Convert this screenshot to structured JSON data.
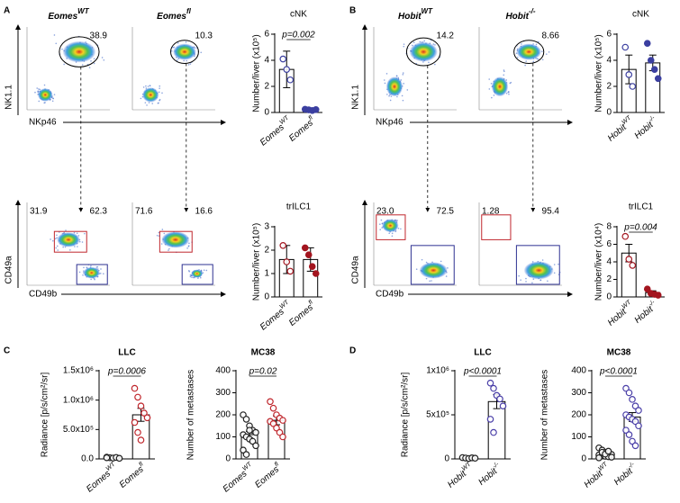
{
  "panel_labels": [
    "A",
    "B",
    "C",
    "D"
  ],
  "flow": [
    {
      "samples": [
        {
          "name": "Eomes",
          "sup": "WT",
          "top_gate": "38.9",
          "left_gate": "31.9",
          "right_gate": "62.3"
        },
        {
          "name": "Eomes",
          "sup": "fl",
          "top_gate": "10.3",
          "left_gate": "71.6",
          "right_gate": "16.6"
        }
      ],
      "top_y_label": "NK1.1",
      "top_x_label": "NKp46",
      "bottom_y_label": "CD49a",
      "bottom_x_label": "CD49b"
    },
    {
      "samples": [
        {
          "name": "Hobit",
          "sup": "WT",
          "top_gate": "14.2",
          "left_gate": "23.0",
          "right_gate": "72.5"
        },
        {
          "name": "Hobit",
          "sup": "-/-",
          "top_gate": "8.66",
          "left_gate": "1.28",
          "right_gate": "95.4"
        }
      ],
      "top_y_label": "NK1.1",
      "top_x_label": "NKp46",
      "bottom_y_label": "CD49a",
      "bottom_x_label": "CD49b"
    }
  ],
  "charts": [
    {
      "type": "bar",
      "title": "cNK",
      "title_color": "#2e3192",
      "y_label": "Number/liver (x10⁵)",
      "ylim": [
        0,
        6
      ],
      "yticks": [
        0,
        2,
        4,
        6
      ],
      "p_label": "p=0.002",
      "series": [
        {
          "label": "Eomes",
          "sup": "WT",
          "mean": 3.3,
          "error": 1.4,
          "points": [
            4.1,
            3.3,
            2.5
          ],
          "color": "#3b3fa0",
          "filled": false
        },
        {
          "label": "Eomes",
          "sup": "fl",
          "mean": 0.2,
          "error": 0.05,
          "points": [
            0.25,
            0.2,
            0.15,
            0.22
          ],
          "color": "#3b3fa0",
          "filled": true
        }
      ]
    },
    {
      "type": "bar",
      "title": "trILC1",
      "title_color": "#b2182b",
      "y_label": "Number/liver (x10⁵)",
      "ylim": [
        0,
        3
      ],
      "yticks": [
        0,
        1,
        2,
        3
      ],
      "series": [
        {
          "label": "Eomes",
          "sup": "WT",
          "mean": 1.6,
          "error": 0.6,
          "points": [
            2.2,
            1.5,
            1.1
          ],
          "color": "#a3151f",
          "filled": false
        },
        {
          "label": "Eomes",
          "sup": "fl",
          "mean": 1.6,
          "error": 0.5,
          "points": [
            2.1,
            1.8,
            1.3,
            1.0
          ],
          "color": "#a3151f",
          "filled": true
        }
      ]
    },
    {
      "type": "bar",
      "title": "cNK",
      "title_color": "#2e3192",
      "y_label": "Number/liver (x10⁵)",
      "ylim": [
        0,
        6
      ],
      "yticks": [
        0,
        2,
        4,
        6
      ],
      "series": [
        {
          "label": "Hobit",
          "sup": "WT",
          "mean": 3.3,
          "error": 1.1,
          "points": [
            5.0,
            2.9,
            2.0
          ],
          "color": "#3b3fa0",
          "filled": false
        },
        {
          "label": "Hobit",
          "sup": "-/-",
          "mean": 3.8,
          "error": 0.6,
          "points": [
            5.3,
            4.0,
            3.3,
            2.6
          ],
          "color": "#3b3fa0",
          "filled": true
        }
      ]
    },
    {
      "type": "bar",
      "title": "trILC1",
      "title_color": "#b2182b",
      "y_label": "Number/liver (x10⁴)",
      "ylim": [
        0,
        8
      ],
      "yticks": [
        0,
        2,
        4,
        6,
        8
      ],
      "p_label": "p=0.004",
      "series": [
        {
          "label": "Hobit",
          "sup": "WT",
          "mean": 5.0,
          "error": 1.0,
          "points": [
            6.9,
            4.3,
            3.6
          ],
          "color": "#a3151f",
          "filled": false
        },
        {
          "label": "Hobit",
          "sup": "-/-",
          "mean": 0.5,
          "error": 0.2,
          "points": [
            0.9,
            0.4,
            0.3,
            0.2
          ],
          "color": "#a3151f",
          "filled": true
        }
      ]
    },
    {
      "type": "bar",
      "title": "LLC",
      "title_color": "#000000",
      "y_label": "Radiance [p/s/cm²/sr]",
      "ylim": [
        0,
        1500000
      ],
      "yticks": [
        {
          "value": 0,
          "label": "0.0"
        },
        {
          "value": 500000,
          "label": "5.0x10⁵"
        },
        {
          "value": 1000000,
          "label": "1.0x10⁶"
        },
        {
          "value": 1500000,
          "label": "1.5x10⁶"
        }
      ],
      "p_label": "p=0.0006",
      "series": [
        {
          "label": "Eomes",
          "sup": "WT",
          "mean": 20000,
          "error": 5000,
          "points": [
            30000,
            20000,
            15000,
            25000,
            10000,
            20000
          ],
          "color": "#222222",
          "filled": false
        },
        {
          "label": "Eomes",
          "sup": "fl",
          "mean": 750000,
          "error": 110000,
          "points": [
            1200000,
            1050000,
            900000,
            780000,
            700000,
            620000,
            450000,
            320000
          ],
          "color": "#c0272d",
          "filled": false
        }
      ]
    },
    {
      "type": "bar",
      "title": "MC38",
      "title_color": "#000000",
      "y_label": "Number of metastases",
      "ylim": [
        0,
        400
      ],
      "yticks": [
        0,
        100,
        200,
        300,
        400
      ],
      "p_label": "p=0.02",
      "series": [
        {
          "label": "Eomes",
          "sup": "WT",
          "mean": 110,
          "error": 15,
          "points": [
            200,
            180,
            150,
            130,
            120,
            110,
            100,
            90,
            80,
            60,
            40,
            20,
            130
          ],
          "color": "#222222",
          "filled": false
        },
        {
          "label": "Eomes",
          "sup": "fl",
          "mean": 175,
          "error": 20,
          "points": [
            260,
            230,
            200,
            185,
            175,
            170,
            160,
            140,
            120,
            100
          ],
          "color": "#c0272d",
          "filled": false
        }
      ]
    },
    {
      "type": "bar",
      "title": "LLC",
      "title_color": "#000000",
      "y_label": "Radiance [p/s/cm²/sr]",
      "ylim": [
        0,
        1000000
      ],
      "yticks": [
        0,
        {
          "value": 500000,
          "label": "5x10⁵"
        },
        {
          "value": 1000000,
          "label": "1x10⁶"
        }
      ],
      "p_label": "p<0.0001",
      "series": [
        {
          "label": "Hobit",
          "sup": "WT",
          "mean": 10000,
          "error": 3000,
          "points": [
            15000,
            10000,
            5000,
            12000,
            8000
          ],
          "color": "#222222",
          "filled": false
        },
        {
          "label": "Hobit",
          "sup": "-/-",
          "mean": 650000,
          "error": 80000,
          "points": [
            860000,
            800000,
            720000,
            680000,
            600000,
            450000,
            300000
          ],
          "color": "#4a3fa8",
          "filled": false
        }
      ]
    },
    {
      "type": "bar",
      "title": "MC38",
      "title_color": "#000000",
      "y_label": "Number of metastases",
      "ylim": [
        0,
        400
      ],
      "yticks": [
        0,
        100,
        200,
        300,
        400
      ],
      "p_label": "p<0.0001",
      "series": [
        {
          "label": "Hobit",
          "sup": "WT",
          "mean": 20,
          "error": 5,
          "points": [
            50,
            40,
            30,
            25,
            20,
            18,
            15,
            12,
            10,
            8,
            5,
            30,
            22,
            35
          ],
          "color": "#222222",
          "filled": false
        },
        {
          "label": "Hobit",
          "sup": "-/-",
          "mean": 190,
          "error": 20,
          "points": [
            320,
            300,
            270,
            240,
            220,
            200,
            190,
            180,
            170,
            150,
            130,
            110,
            80,
            60
          ],
          "color": "#4a3fa8",
          "filled": false
        }
      ]
    }
  ]
}
